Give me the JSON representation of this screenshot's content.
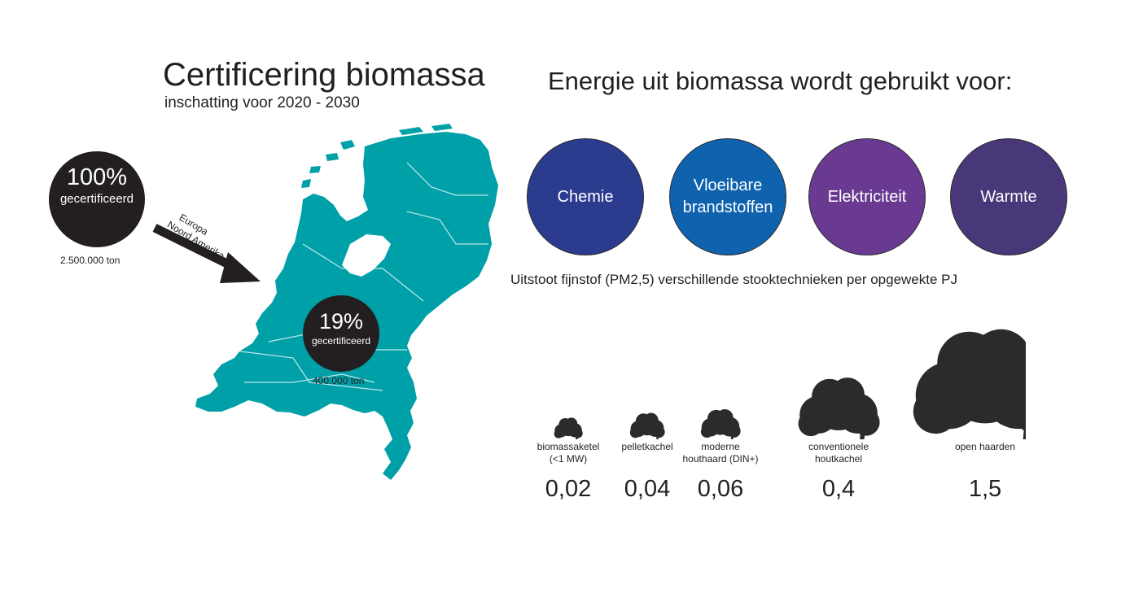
{
  "header": {
    "title": "Certificering biomassa",
    "subtitle": "inschatting voor 2020 - 2030"
  },
  "certification": {
    "total": {
      "percent": "100%",
      "label": "gecertificeerd",
      "tons": "2.500.000 ton"
    },
    "arrow_label_line1": "Europa",
    "arrow_label_line2": "Noord Amerika",
    "netherlands": {
      "percent": "19%",
      "label": "gecertificeerd",
      "tons": "400.000 ton"
    }
  },
  "uses": {
    "title": "Energie uit biomassa wordt gebruikt voor:",
    "items": [
      {
        "label": "Chemie",
        "color": "#2b3c8f"
      },
      {
        "label": "Vloeibare brandstoffen",
        "color": "#0f63ae"
      },
      {
        "label": "Elektriciteit",
        "color": "#6a3a92"
      },
      {
        "label": "Warmte",
        "color": "#48387a"
      }
    ]
  },
  "colors": {
    "map": "#00a0a8",
    "badge": "#231f20",
    "smoke": "#2b2b2b"
  },
  "chart_data": {
    "type": "bar",
    "title": "Uitstoot fijnstof (PM2,5) verschillende stooktechnieken per opgewekte PJ",
    "categories": [
      "biomassaketel (<1 MW)",
      "pelletkachel",
      "moderne houthaard (DIN+)",
      "conventionele houtkachel",
      "open haarden"
    ],
    "values": [
      0.02,
      0.04,
      0.06,
      0.4,
      1.5
    ],
    "value_labels": [
      "0,02",
      "0,04",
      "0,06",
      "0,4",
      "1,5"
    ],
    "icon": "smoke-cloud"
  }
}
